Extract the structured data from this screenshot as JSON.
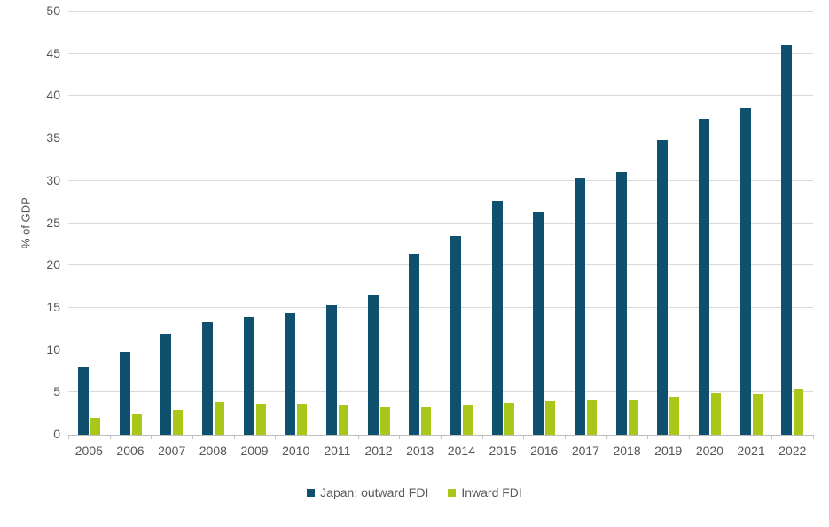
{
  "chart_data": {
    "type": "bar",
    "title": "",
    "xlabel": "",
    "ylabel": "% of GDP",
    "categories": [
      "2005",
      "2006",
      "2007",
      "2008",
      "2009",
      "2010",
      "2011",
      "2012",
      "2013",
      "2014",
      "2015",
      "2016",
      "2017",
      "2018",
      "2019",
      "2020",
      "2021",
      "2022"
    ],
    "series": [
      {
        "name": "Japan: outward FDI",
        "color": "#0E506E",
        "values": [
          8.0,
          9.7,
          11.8,
          13.3,
          13.9,
          14.4,
          15.3,
          16.5,
          21.4,
          23.5,
          27.7,
          26.3,
          30.3,
          31.0,
          34.8,
          37.3,
          38.6,
          46.0
        ]
      },
      {
        "name": "Inward FDI",
        "color": "#A9C719",
        "values": [
          2.0,
          2.4,
          2.9,
          3.9,
          3.7,
          3.7,
          3.6,
          3.2,
          3.2,
          3.5,
          3.8,
          4.0,
          4.1,
          4.1,
          4.4,
          4.9,
          4.8,
          5.3
        ]
      }
    ],
    "ylim": [
      0,
      50
    ],
    "ytick_step": 5,
    "grid": true,
    "gridline_color": "#D9D9D9",
    "axis_line_color": "#BFBFBF",
    "text_color": "#555555",
    "legend_position": "bottom"
  }
}
